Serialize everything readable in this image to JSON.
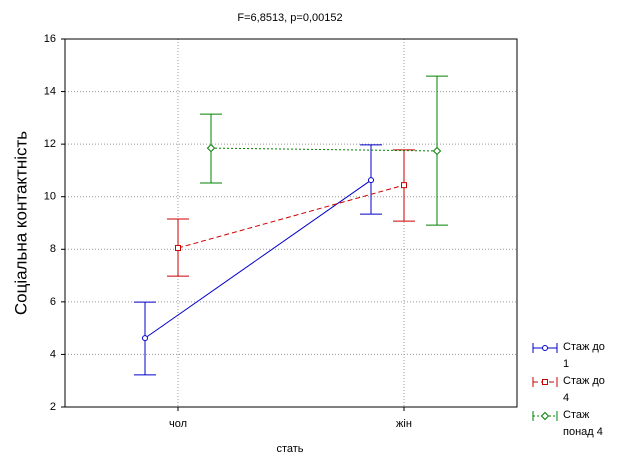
{
  "chart_data": {
    "type": "line",
    "title": "F=6,8513, p=0,00152",
    "x_label": "стать",
    "y_label": "Соціальна контактність",
    "categories": [
      "чол",
      "жін"
    ],
    "ylim": [
      2,
      16
    ],
    "yticks": [
      2,
      4,
      6,
      8,
      10,
      12,
      14,
      16
    ],
    "grid": true,
    "legend": "right-bottom",
    "series": [
      {
        "name": "Стаж до 1",
        "color": "#0000cc",
        "line_style": "solid",
        "marker": "circle",
        "values": [
          4.62,
          10.63
        ],
        "lower": [
          3.22,
          9.34
        ],
        "upper": [
          5.99,
          11.97
        ]
      },
      {
        "name": "Стаж до 4",
        "color": "#cc0000",
        "line_style": "dashed",
        "marker": "square",
        "values": [
          8.05,
          10.44
        ],
        "lower": [
          6.98,
          9.07
        ],
        "upper": [
          9.15,
          11.78
        ]
      },
      {
        "name": "Стаж понад 4",
        "color": "#008000",
        "line_style": "dotted",
        "marker": "diamond",
        "values": [
          11.85,
          11.74
        ],
        "lower": [
          10.52,
          8.92
        ],
        "upper": [
          13.14,
          14.59
        ]
      }
    ]
  }
}
